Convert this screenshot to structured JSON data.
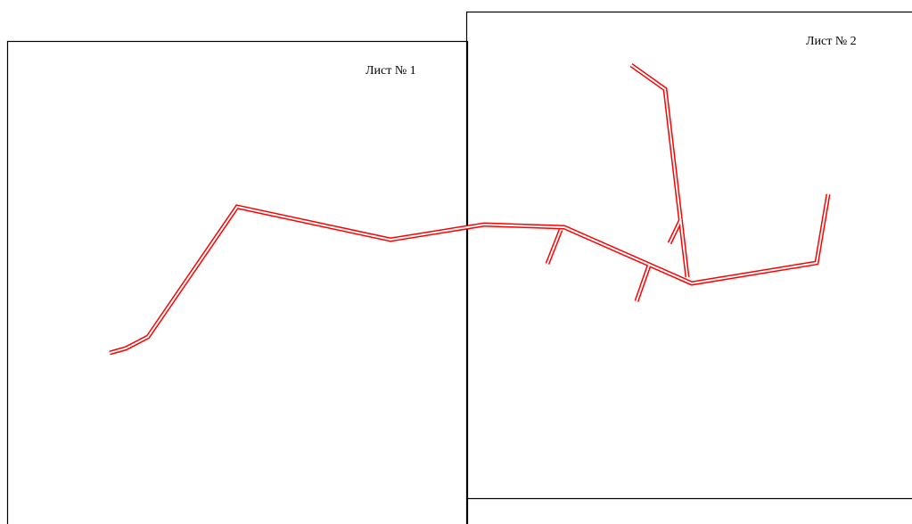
{
  "sheets": [
    {
      "label": "Лист № 1"
    },
    {
      "label": "Лист № 2"
    }
  ],
  "colors": {
    "frame": "#000000",
    "line": "#ff0000",
    "background": "#ffffff"
  }
}
